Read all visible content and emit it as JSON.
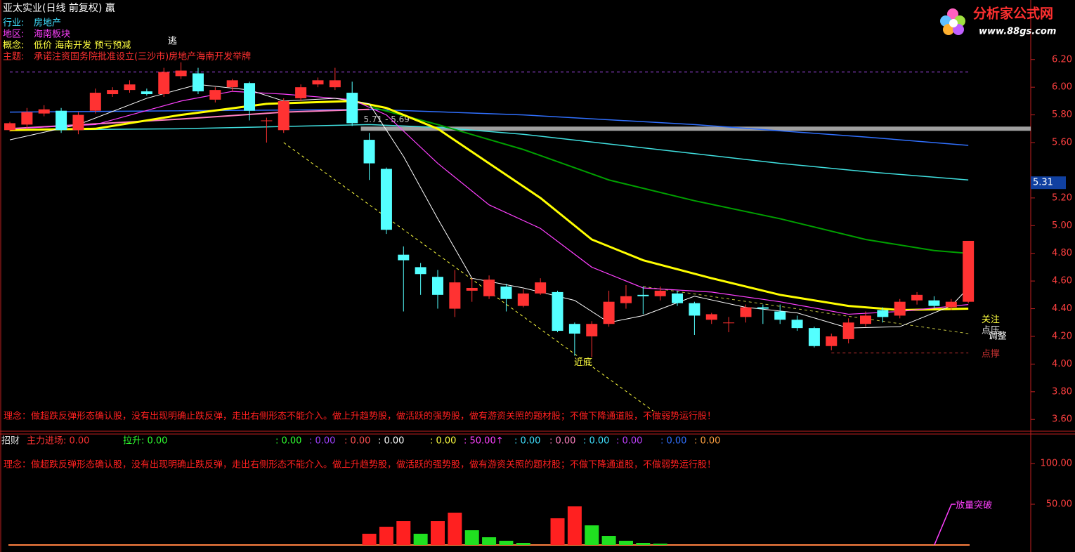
{
  "logo": {
    "name": "分析家公式网",
    "url": "www.88gs.com"
  },
  "chart_data": [
    {
      "type": "candlestick",
      "title": "亚太实业(日线 前复权) 羸",
      "info": [
        {
          "label": "行业:",
          "value": "房地产",
          "color": "#40e0ff"
        },
        {
          "label": "地区:",
          "value": "海南板块",
          "color": "#ff40ff"
        },
        {
          "label": "概念:",
          "value": "低价 海南开发 预亏预减",
          "color": "#ffff40"
        },
        {
          "label": "主题:",
          "value": "承诺注资国务院批准设立(三沙市)房地产海南开发举牌",
          "color": "#ff3030"
        }
      ],
      "up_color": "#ff3232",
      "down_color": "#54ffff",
      "open": [
        5.69,
        5.73,
        5.81,
        5.83,
        5.69,
        5.83,
        5.95,
        5.98,
        5.97,
        5.95,
        6.08,
        6.1,
        5.91,
        6.0,
        6.03,
        5.76,
        5.69,
        5.92,
        6.02,
        6.0,
        5.96,
        5.62,
        5.41,
        4.79,
        4.7,
        4.63,
        4.4,
        4.53,
        4.49,
        4.56,
        4.42,
        4.51,
        4.52,
        4.29,
        4.2,
        4.29,
        4.44,
        4.5,
        4.49,
        4.51,
        4.44,
        4.32,
        4.3,
        4.34,
        4.41,
        4.38,
        4.32,
        4.26,
        4.13,
        4.18,
        4.29,
        4.39,
        4.35,
        4.46,
        4.46,
        4.41,
        4.45
      ],
      "high": [
        5.75,
        5.85,
        5.87,
        5.85,
        5.82,
        5.99,
        6.0,
        6.05,
        5.99,
        6.14,
        6.18,
        6.14,
        6.0,
        6.06,
        6.04,
        5.78,
        5.92,
        6.02,
        6.07,
        6.14,
        6.04,
        5.67,
        5.42,
        4.85,
        4.73,
        4.68,
        4.68,
        4.62,
        4.64,
        4.58,
        4.54,
        4.62,
        4.53,
        4.3,
        4.31,
        4.53,
        4.57,
        4.56,
        4.56,
        4.53,
        4.45,
        4.37,
        4.34,
        4.43,
        4.43,
        4.43,
        4.35,
        4.27,
        4.22,
        4.33,
        4.38,
        4.41,
        4.47,
        4.52,
        4.49,
        4.47,
        4.89
      ],
      "low": [
        5.68,
        5.7,
        5.79,
        5.67,
        5.66,
        5.81,
        5.93,
        5.96,
        5.94,
        5.93,
        6.06,
        5.95,
        5.89,
        5.97,
        5.76,
        5.6,
        5.67,
        5.9,
        6.0,
        5.98,
        5.72,
        5.33,
        4.94,
        4.38,
        4.5,
        4.4,
        4.34,
        4.45,
        4.47,
        4.38,
        4.41,
        4.5,
        4.23,
        4.06,
        4.05,
        4.27,
        4.4,
        4.36,
        4.46,
        4.42,
        4.21,
        4.29,
        4.23,
        4.3,
        4.29,
        4.29,
        4.24,
        4.12,
        4.1,
        4.15,
        4.27,
        4.3,
        4.33,
        4.43,
        4.4,
        4.39,
        4.44
      ],
      "close": [
        5.74,
        5.82,
        5.84,
        5.69,
        5.8,
        5.96,
        5.98,
        6.02,
        5.95,
        6.11,
        6.12,
        5.97,
        5.98,
        6.05,
        5.83,
        5.76,
        5.9,
        6.0,
        6.05,
        6.05,
        5.74,
        5.45,
        4.97,
        4.75,
        4.65,
        4.5,
        4.59,
        4.55,
        4.61,
        4.47,
        4.51,
        4.59,
        4.24,
        4.22,
        4.29,
        4.45,
        4.49,
        4.49,
        4.53,
        4.44,
        4.35,
        4.36,
        4.3,
        4.41,
        4.4,
        4.32,
        4.26,
        4.13,
        4.2,
        4.3,
        4.35,
        4.34,
        4.45,
        4.5,
        4.42,
        4.45,
        4.89
      ],
      "lines": [
        {
          "color": "#3070ff",
          "width": 1.5,
          "x": [
            0,
            21,
            30,
            40,
            50,
            56
          ],
          "values": [
            5.82,
            5.84,
            5.8,
            5.73,
            5.64,
            5.58
          ]
        },
        {
          "color": "#40e0e0",
          "width": 1.5,
          "x": [
            0,
            10,
            21,
            25,
            30,
            35,
            40,
            45,
            50,
            56
          ],
          "values": [
            5.69,
            5.7,
            5.73,
            5.71,
            5.66,
            5.59,
            5.52,
            5.45,
            5.39,
            5.33
          ]
        },
        {
          "color": "#00a000",
          "width": 2,
          "x": [
            21,
            25,
            30,
            35,
            40,
            45,
            50,
            54,
            56
          ],
          "values": [
            5.86,
            5.73,
            5.55,
            5.33,
            5.18,
            5.05,
            4.9,
            4.82,
            4.8
          ]
        },
        {
          "color": "#ff80c0",
          "width": 2,
          "x": [
            0,
            10,
            16,
            21
          ],
          "values": [
            5.7,
            5.77,
            5.82,
            5.84
          ]
        },
        {
          "color": "#ffff00",
          "width": 3,
          "x": [
            0,
            5,
            10,
            15,
            20,
            22,
            25,
            28,
            31,
            34,
            37,
            41,
            45,
            49,
            52,
            56
          ],
          "values": [
            5.69,
            5.7,
            5.8,
            5.88,
            5.9,
            5.85,
            5.7,
            5.45,
            5.2,
            4.9,
            4.75,
            4.62,
            4.5,
            4.42,
            4.39,
            4.4
          ]
        },
        {
          "color": "#ff40ff",
          "width": 1.2,
          "x": [
            0,
            5,
            10,
            13,
            16,
            20,
            22,
            25,
            28,
            31,
            34,
            37,
            41,
            45,
            49,
            52,
            56
          ],
          "values": [
            5.7,
            5.73,
            5.9,
            5.97,
            5.95,
            5.91,
            5.8,
            5.45,
            5.15,
            4.98,
            4.7,
            4.55,
            4.52,
            4.45,
            4.36,
            4.38,
            4.43
          ]
        },
        {
          "color": "#ffffff",
          "width": 1,
          "x": [
            0,
            4,
            8,
            11,
            14,
            16,
            19,
            21,
            23,
            25,
            27,
            30,
            33,
            35,
            37,
            40,
            43,
            46,
            49,
            52,
            55,
            56
          ],
          "values": [
            5.62,
            5.73,
            5.92,
            6.02,
            5.98,
            5.9,
            5.92,
            5.88,
            5.5,
            5.05,
            4.62,
            4.55,
            4.46,
            4.3,
            4.35,
            4.49,
            4.41,
            4.37,
            4.26,
            4.27,
            4.42,
            4.55
          ]
        }
      ],
      "trend_lines": [
        {
          "color": "#b050ff",
          "x": [
            0,
            56
          ],
          "values": [
            6.11,
            6.11
          ]
        },
        {
          "color": "#ffff40",
          "x": [
            16,
            37.6
          ],
          "values": [
            5.6,
            3.66
          ]
        },
        {
          "color": "#c0c040",
          "x": [
            37,
            56
          ],
          "values": [
            4.56,
            4.22
          ]
        },
        {
          "color": "#c03030",
          "x": [
            48,
            56
          ],
          "values": [
            4.08,
            4.08
          ]
        }
      ],
      "range_band": {
        "value": 5.7,
        "label": "5.71 - 5.69",
        "color": "#a0a0a0",
        "x": 21
      },
      "price_marker": 5.31,
      "annotations": [
        {
          "text": "逃",
          "color": "#ffffff",
          "x": 9.5,
          "y": 6.33
        },
        {
          "text": "近底",
          "color": "#ffff40",
          "x": 33.5,
          "y": 4.01
        },
        {
          "text": "关注",
          "color": "#ffff40",
          "x": 57.3,
          "y": 4.32
        },
        {
          "text": "点压",
          "color": "#e0e0e0",
          "x": 57.3,
          "y": 4.24
        },
        {
          "text": "调整",
          "color": "#ffffff",
          "x": 57.7,
          "y": 4.2
        },
        {
          "text": "点撑",
          "color": "#c03030",
          "x": 57.3,
          "y": 4.07
        }
      ],
      "note": "理念：做超跌反弹形态确认股，没有出现明确止跌反弹，走出右侧形态不能介入。做上升趋势股，做活跃的强势股，做有游资关照的题材股；不做下降通道股，不做弱势运行股！",
      "ylim": [
        3.52,
        6.63
      ],
      "yticks": [
        {
          "value": 3.6,
          "label": "3.60"
        },
        {
          "value": 3.8,
          "label": "3.80"
        },
        {
          "value": 4.0,
          "label": "4.00"
        },
        {
          "value": 4.2,
          "label": "4.20"
        },
        {
          "value": 4.4,
          "label": "4.40"
        },
        {
          "value": 4.6,
          "label": "4.60"
        },
        {
          "value": 4.8,
          "label": "4.80"
        },
        {
          "value": 5.0,
          "label": "5.00"
        },
        {
          "value": 5.2,
          "label": "5.20"
        },
        {
          "value": 5.6,
          "label": "5.60"
        },
        {
          "value": 5.8,
          "label": "5.80"
        },
        {
          "value": 6.0,
          "label": "6.00"
        },
        {
          "value": 6.2,
          "label": "6.20"
        }
      ]
    },
    {
      "type": "bar",
      "title": "招财",
      "indicators": [
        {
          "text": "主力进场: 0.00",
          "color": "#ff3232"
        },
        {
          "text": "拉升: 0.00",
          "color": "#30ff30"
        },
        {
          "text": ": 0.00",
          "color": "#30ff30"
        },
        {
          "text": ": 0.00",
          "color": "#a040ff"
        },
        {
          "text": ": 0.00",
          "color": "#ff5050"
        },
        {
          "text": ": 0.00",
          "color": "#ffffff"
        },
        {
          "text": ": 0.00",
          "color": "#ffff40"
        },
        {
          "text": ": 50.00↑",
          "color": "#ff40ff"
        },
        {
          "text": ": 0.00",
          "color": "#40e0ff"
        },
        {
          "text": ": 0.00",
          "color": "#ff80c0"
        },
        {
          "text": ": 0.00",
          "color": "#40e0ff"
        },
        {
          "text": ": 0.00",
          "color": "#c040ff"
        },
        {
          "text": ": 0.00",
          "color": "#3070ff"
        },
        {
          "text": ": 0.00",
          "color": "#ffa040"
        }
      ],
      "note": "理念：做超跌反弹形态确认股，没有出现明确止跌反弹，走出右侧形态不能介入。做上升趋势股，做活跃的强势股，做有游资关照的题材股；不做下降通道股，不做弱势运行股！",
      "x": [
        21,
        22,
        23,
        24,
        25,
        26,
        27,
        28,
        29,
        30,
        32,
        33,
        34,
        35,
        36,
        37,
        38
      ],
      "values": [
        13.8,
        22.4,
        29.3,
        13.8,
        29.3,
        39.7,
        18.1,
        9.5,
        5.2,
        2.6,
        32.8,
        47.4,
        24.1,
        11.2,
        5.2,
        2.6,
        1.7
      ],
      "colors": [
        "#ff2020",
        "#ff2020",
        "#ff2020",
        "#20e020",
        "#ff2020",
        "#ff2020",
        "#20e020",
        "#20e020",
        "#20e020",
        "#20e020",
        "#ff2020",
        "#ff2020",
        "#20e020",
        "#20e020",
        "#20e020",
        "#20e020",
        "#20e020"
      ],
      "signal": {
        "label": "放量突破",
        "color": "#ff40ff",
        "x": [
          55,
          56
        ],
        "values": [
          0,
          50
        ]
      },
      "ylim": [
        -8.6,
        136.2
      ],
      "yticks": [
        {
          "value": 50,
          "label": "50.00"
        },
        {
          "value": 100,
          "label": "100.00"
        }
      ]
    }
  ]
}
